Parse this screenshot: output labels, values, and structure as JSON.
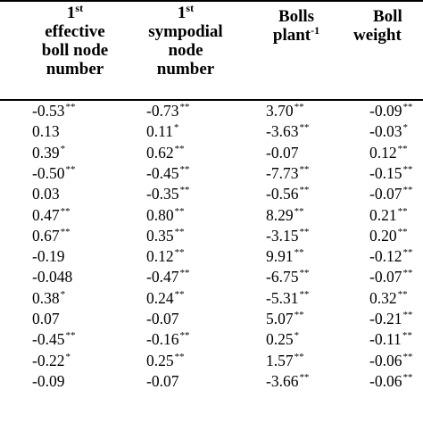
{
  "columns": [
    {
      "lines": [
        "1",
        "effective",
        "boll node",
        "number"
      ],
      "sup": "st"
    },
    {
      "lines": [
        "1",
        "sympodial",
        "node",
        "number"
      ],
      "sup": "st"
    },
    {
      "lines": [
        "Bolls",
        "plant"
      ],
      "sup": "-1"
    },
    {
      "lines": [
        "Boll",
        "weight"
      ]
    }
  ],
  "rows": [
    [
      [
        "-0.53",
        "**"
      ],
      [
        "-0.73",
        "**"
      ],
      [
        "3.70",
        "**"
      ],
      [
        "-0.09",
        "**"
      ]
    ],
    [
      [
        "0.13",
        ""
      ],
      [
        "0.11",
        "*"
      ],
      [
        "-3.63",
        "**"
      ],
      [
        "-0.03",
        "*"
      ]
    ],
    [
      [
        "0.39",
        "*"
      ],
      [
        "0.62",
        "**"
      ],
      [
        "-0.07",
        ""
      ],
      [
        "0.12",
        "**"
      ]
    ],
    [
      [
        "-0.50",
        "**"
      ],
      [
        "-0.45",
        "**"
      ],
      [
        "-7.73",
        "**"
      ],
      [
        "-0.15",
        "**"
      ]
    ],
    [
      [
        "0.03",
        ""
      ],
      [
        "-0.35",
        "**"
      ],
      [
        "-0.56",
        "**"
      ],
      [
        "-0.07",
        "**"
      ]
    ],
    [
      [
        "0.47",
        "**"
      ],
      [
        "0.80",
        "**"
      ],
      [
        "8.29",
        "**"
      ],
      [
        "0.21",
        "**"
      ]
    ],
    [
      [
        "0.67",
        "**"
      ],
      [
        "0.35",
        "**"
      ],
      [
        "-3.15",
        "**"
      ],
      [
        "0.20",
        "**"
      ]
    ],
    [
      [
        "-0.19",
        ""
      ],
      [
        "0.12",
        "**"
      ],
      [
        "9.91",
        "**"
      ],
      [
        "-0.12",
        "**"
      ]
    ],
    [
      [
        "-0.048",
        ""
      ],
      [
        "-0.47",
        "**"
      ],
      [
        "-6.75",
        "**"
      ],
      [
        "-0.07",
        "**"
      ]
    ],
    [
      [
        "0.38",
        "*"
      ],
      [
        "0.24",
        "**"
      ],
      [
        "-5.31",
        "**"
      ],
      [
        "0.32",
        "**"
      ]
    ],
    [
      [
        "0.07",
        ""
      ],
      [
        "-0.07",
        ""
      ],
      [
        "5.07",
        "**"
      ],
      [
        "-0.21",
        "**"
      ]
    ],
    [
      [
        "-0.45",
        "**"
      ],
      [
        "-0.16",
        "**"
      ],
      [
        "0.25",
        "*"
      ],
      [
        "-0.11",
        "**"
      ]
    ],
    [
      [
        "-0.22",
        "*"
      ],
      [
        "0.25",
        "**"
      ],
      [
        "1.57",
        "**"
      ],
      [
        "-0.06",
        "**"
      ]
    ],
    [
      [
        "-0.09",
        ""
      ],
      [
        "-0.07",
        ""
      ],
      [
        "-3.66",
        "**"
      ],
      [
        "-0.06",
        "**"
      ]
    ]
  ]
}
